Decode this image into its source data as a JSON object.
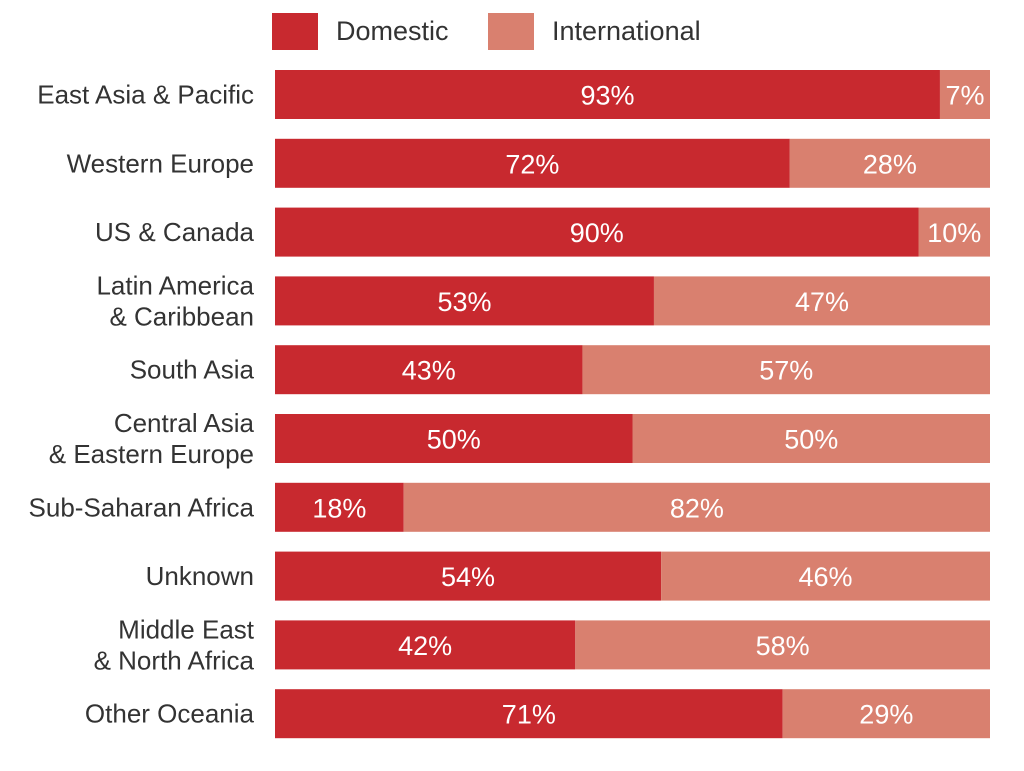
{
  "colors": {
    "domestic": "#c8292f",
    "international": "#d9806f",
    "label_text": "#333333",
    "bar_text": "#ffffff"
  },
  "chart_data": {
    "type": "bar",
    "orientation": "horizontal",
    "stacked": true,
    "normalized": true,
    "title": "",
    "xlabel": "",
    "ylabel": "",
    "xlim": [
      0,
      100
    ],
    "grid": false,
    "legend_position": "top",
    "categories": [
      "East Asia & Pacific",
      "Western Europe",
      "US & Canada",
      "Latin America\n& Caribbean",
      "South Asia",
      "Central Asia\n& Eastern Europe",
      "Sub-Saharan Africa",
      "Unknown",
      "Middle East\n& North Africa",
      "Other Oceania"
    ],
    "series": [
      {
        "name": "Domestic",
        "color": "#c8292f",
        "values": [
          93,
          72,
          90,
          53,
          43,
          50,
          18,
          54,
          42,
          71
        ],
        "labels": [
          "93%",
          "72%",
          "90%",
          "53%",
          "43%",
          "50%",
          "18%",
          "54%",
          "42%",
          "71%"
        ]
      },
      {
        "name": "International",
        "color": "#d9806f",
        "values": [
          7,
          28,
          10,
          47,
          57,
          50,
          82,
          46,
          58,
          29
        ],
        "labels": [
          "7%",
          "28%",
          "10%",
          "47%",
          "57%",
          "50%",
          "82%",
          "46%",
          "58%",
          "29%"
        ]
      }
    ]
  }
}
